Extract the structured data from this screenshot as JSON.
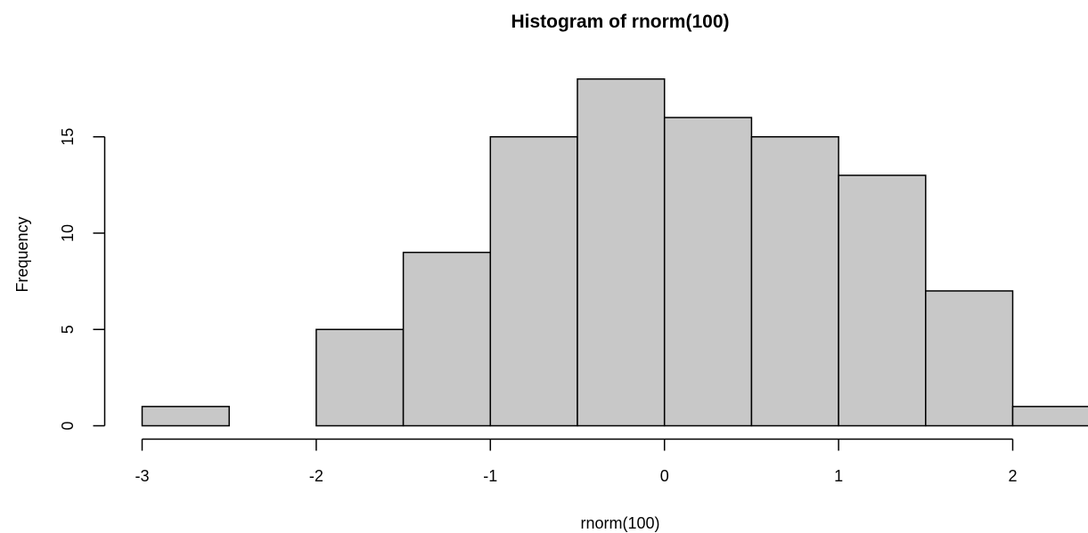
{
  "chart_data": {
    "type": "bar",
    "title": "Histogram of rnorm(100)",
    "xlabel": "rnorm(100)",
    "ylabel": "Frequency",
    "bins": [
      {
        "start": -3.0,
        "end": -2.5,
        "count": 1
      },
      {
        "start": -2.5,
        "end": -2.0,
        "count": 0
      },
      {
        "start": -2.0,
        "end": -1.5,
        "count": 5
      },
      {
        "start": -1.5,
        "end": -1.0,
        "count": 9
      },
      {
        "start": -1.0,
        "end": -0.5,
        "count": 15
      },
      {
        "start": -0.5,
        "end": 0.0,
        "count": 18
      },
      {
        "start": 0.0,
        "end": 0.5,
        "count": 16
      },
      {
        "start": 0.5,
        "end": 1.0,
        "count": 15
      },
      {
        "start": 1.0,
        "end": 1.5,
        "count": 13
      },
      {
        "start": 1.5,
        "end": 2.0,
        "count": 7
      },
      {
        "start": 2.0,
        "end": 2.5,
        "count": 1
      }
    ],
    "x_ticks": [
      -3,
      -2,
      -1,
      0,
      1,
      2
    ],
    "x_tick_labels": [
      "-3",
      "-2",
      "-1",
      "0",
      "1",
      "2"
    ],
    "y_ticks": [
      0,
      5,
      10,
      15
    ],
    "y_tick_labels": [
      "0",
      "5",
      "10",
      "15"
    ],
    "xlim": [
      -3,
      2.5
    ],
    "ylim": [
      0,
      18
    ],
    "grid": false,
    "bar_fill": "#c8c8c8",
    "bar_stroke": "#000000"
  }
}
